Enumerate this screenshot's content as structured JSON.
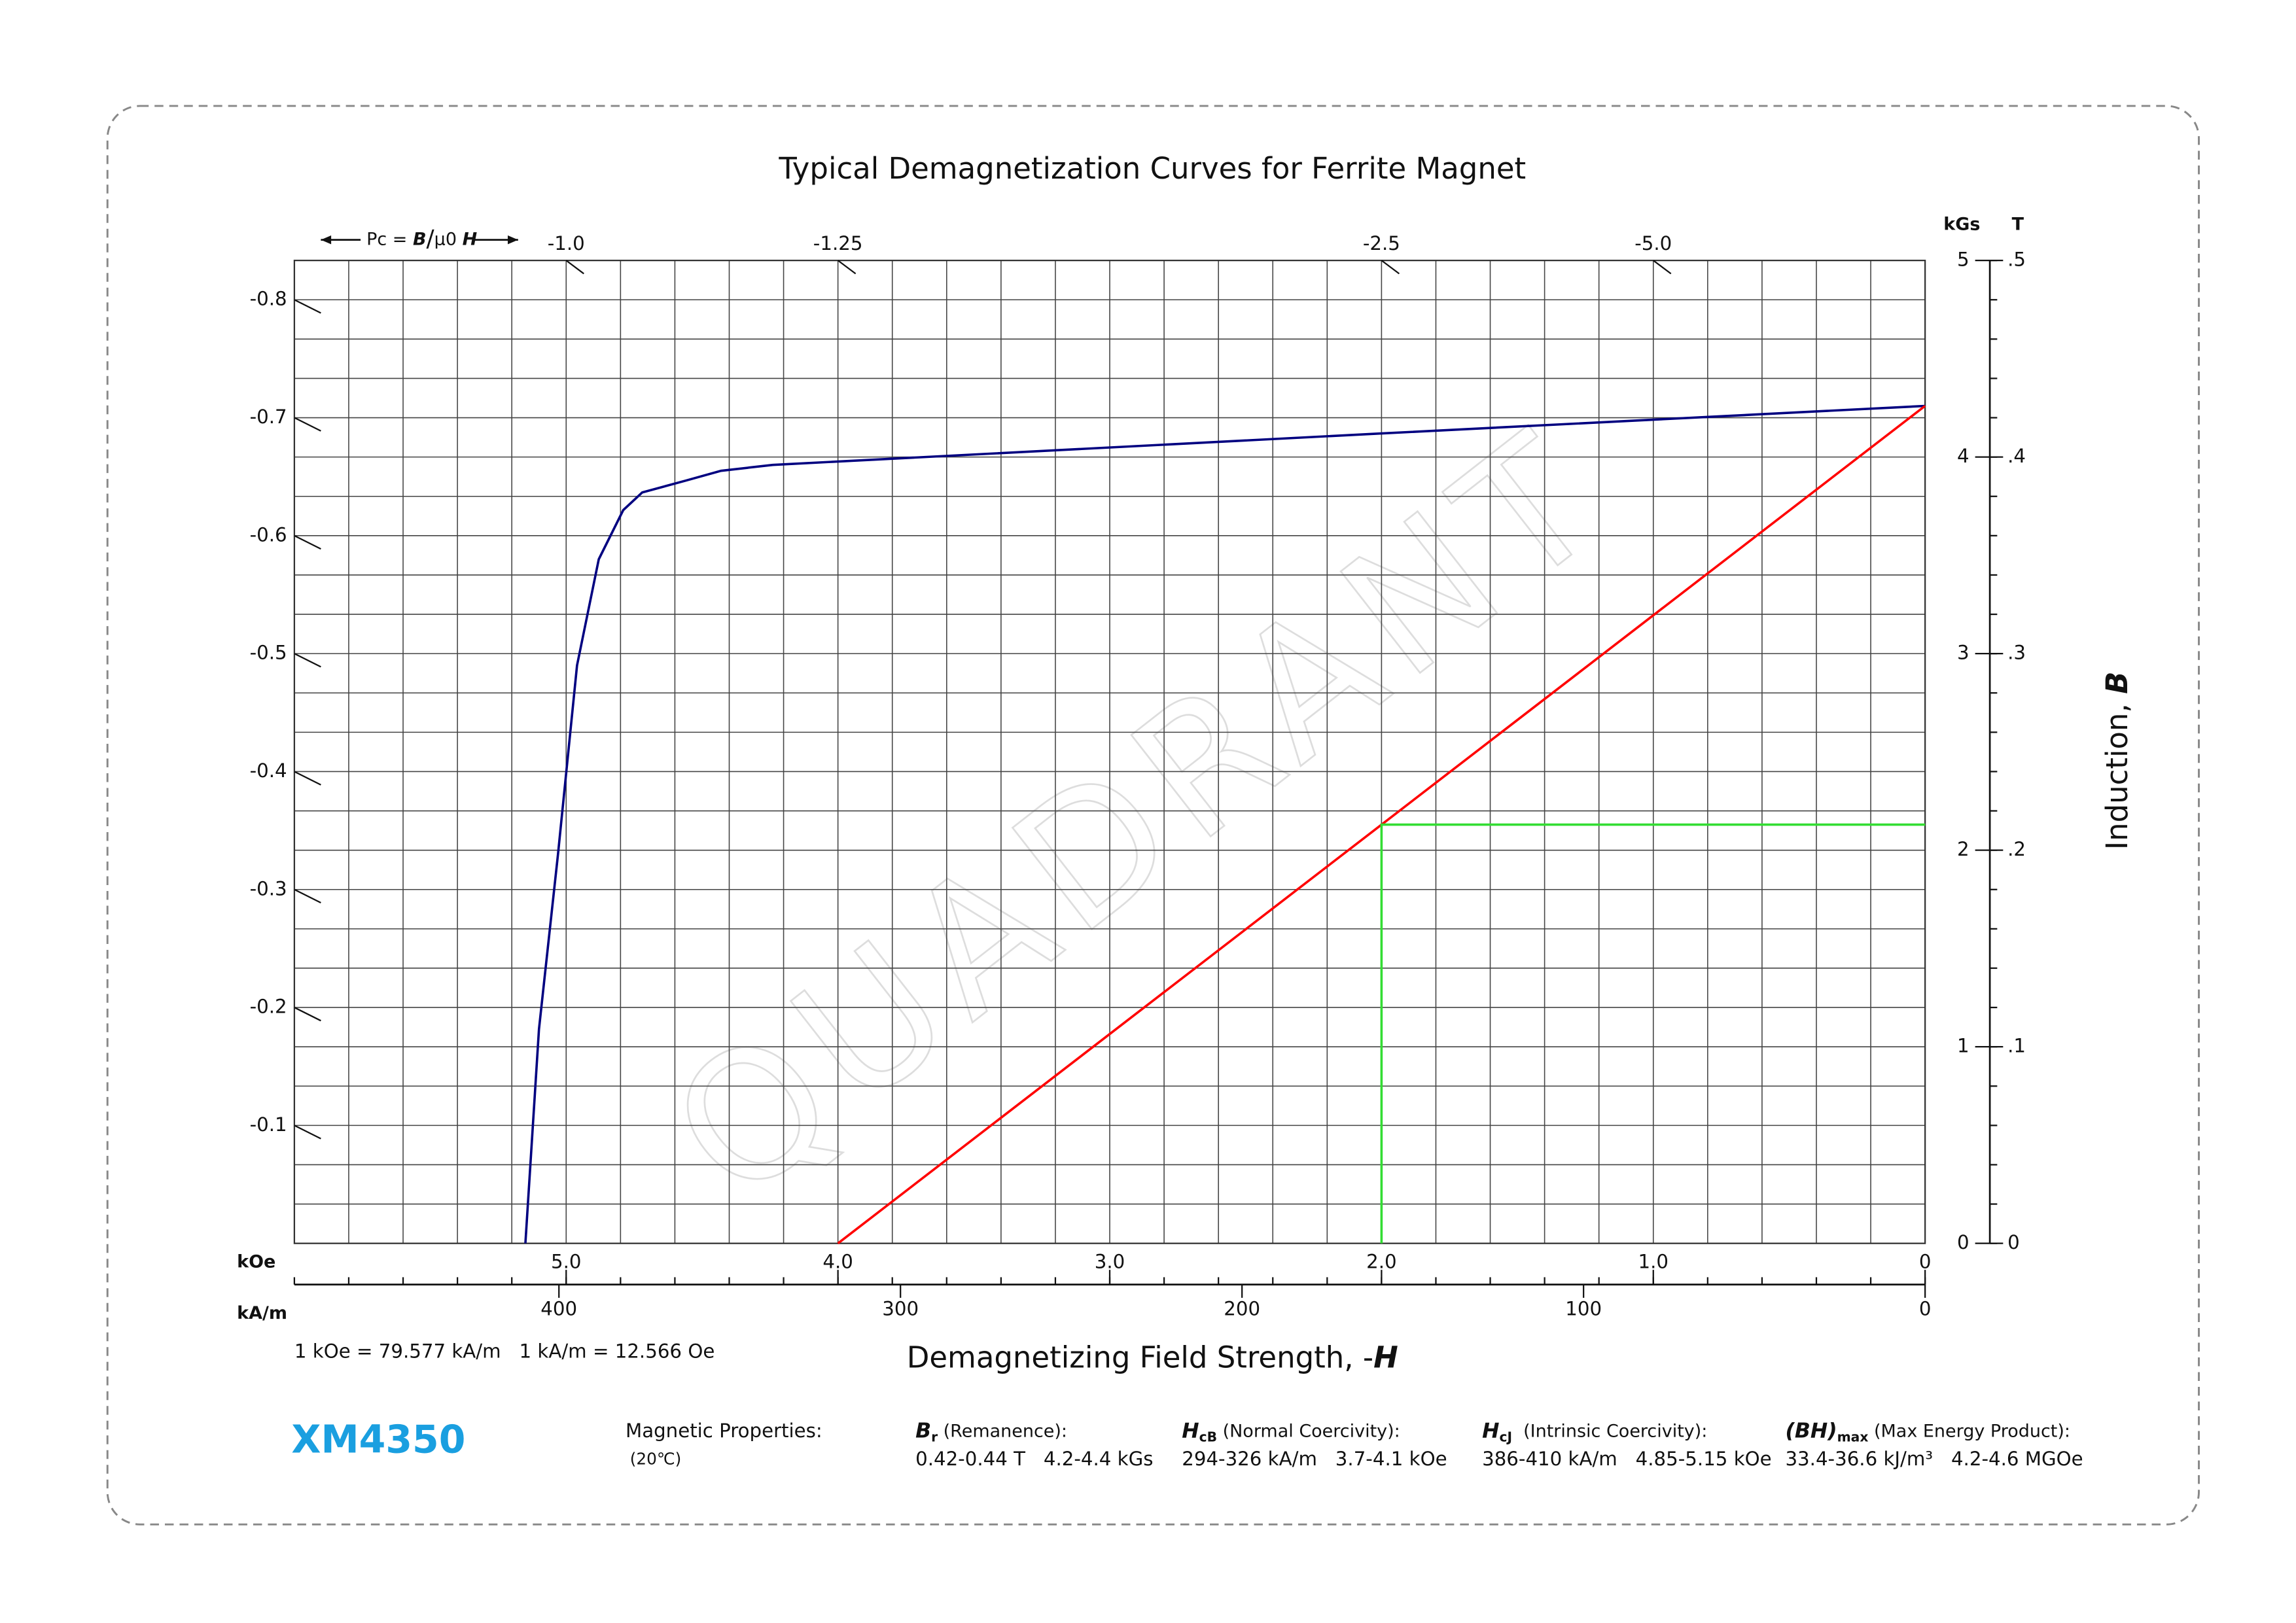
{
  "chart_data": {
    "type": "line",
    "title": "Typical Demagnetization Curves for Ferrite Magnet",
    "xlabel": [
      "Demagnetizing Field Strength, -",
      "H"
    ],
    "ylabel": [
      "Induction, ",
      "B"
    ],
    "xunit": "kOe",
    "x2unit": "kA/m",
    "yunit": "kGs",
    "y2unit": "T",
    "xlim": [
      6,
      0
    ],
    "xticks": [
      {
        "value": 5,
        "label": "5.0"
      },
      {
        "value": 4,
        "label": "4.0"
      },
      {
        "value": 3,
        "label": "3.0"
      },
      {
        "value": 2,
        "label": "2.0"
      },
      {
        "value": 1,
        "label": "1.0"
      },
      0
    ],
    "x2lim": [
      477.46,
      0
    ],
    "x2ticks": [
      400,
      300,
      200,
      100,
      0
    ],
    "ylim": [
      0,
      5
    ],
    "yticks": [
      0,
      1,
      2,
      3,
      4,
      5
    ],
    "y2lim": [
      0,
      0.5
    ],
    "y2ticks": [
      0,
      {
        "value": 0.1,
        "label": ".1"
      },
      {
        "value": 0.2,
        "label": ".2"
      },
      {
        "value": 0.3,
        "label": ".3"
      },
      {
        "value": 0.4,
        "label": ".4"
      },
      {
        "value": 0.5,
        "label": ".5"
      }
    ],
    "grid": true,
    "xgrid": [
      0,
      0.2,
      0.4,
      0.6,
      0.8,
      1,
      1.2,
      1.4,
      1.6,
      1.8,
      2,
      2.2,
      2.4,
      2.6,
      2.8,
      3,
      3.2,
      3.4,
      3.6,
      3.8,
      4,
      4.2,
      4.4,
      4.6,
      4.8,
      5,
      5.2,
      5.4,
      5.6,
      5.8,
      6
    ],
    "ygrid": [
      0,
      0.2,
      0.4,
      0.6,
      0.8,
      1,
      1.2,
      1.4,
      1.6,
      1.8,
      2,
      2.2,
      2.4,
      2.6,
      2.8,
      3,
      3.2,
      3.4,
      3.6,
      3.8,
      4,
      4.2,
      4.4,
      4.6,
      4.8,
      5
    ],
    "pc_label": [
      "Pc = ",
      "B",
      "/",
      "μ0 ",
      "H"
    ],
    "pc_ticks_left": [
      -0.8,
      -0.7,
      -0.6,
      -0.5,
      -0.4,
      -0.3,
      -0.2,
      -0.1
    ],
    "pc_ticks_top": [
      {
        "value": -1,
        "label": "-1.0"
      },
      -1.25,
      -2.5,
      {
        "value": -5,
        "label": "-5.0"
      }
    ],
    "series": [
      {
        "color": "#000080",
        "x": [
          0,
          2.0,
          4.24,
          4.43,
          4.56,
          4.64,
          4.72,
          4.79,
          4.88,
          4.96,
          5.03,
          5.1,
          5.15
        ],
        "values": [
          4.26,
          4.12,
          3.96,
          3.93,
          3.88,
          3.85,
          3.82,
          3.73,
          3.48,
          2.94,
          1.98,
          1.09,
          0
        ]
      },
      {
        "color": "#ff0000",
        "x": [
          0,
          4.0
        ],
        "values": [
          4.26,
          0
        ]
      },
      {
        "color": "#33dd33",
        "x": [
          2.0,
          2.0,
          0
        ],
        "values": [
          0,
          2.13,
          2.13
        ]
      }
    ],
    "note": "1 kOe = 79.577 kA/m   1 kA/m = 12.566 Oe",
    "watermark": "QUADRANT"
  },
  "footer": {
    "product": "XM4350",
    "heading": "Magnetic Properties:",
    "condition": "(20℃)",
    "properties": [
      {
        "symbol": "B",
        "sub": "r",
        "desc": " (Remanence):",
        "value": "0.42-0.44 T   4.2-4.4 kGs"
      },
      {
        "symbol": "H",
        "sub": "cB",
        "desc": " (Normal Coercivity):",
        "value": "294-326 kA/m   3.7-4.1 kOe"
      },
      {
        "symbol": "H",
        "sub": "cJ",
        "desc": "  (Intrinsic Coercivity):",
        "value": "386-410 kA/m   4.85-5.15 kOe"
      },
      {
        "symbol": "(BH)",
        "sub": "max",
        "desc": " (Max Energy Product):",
        "value": "33.4-36.6 kJ/m³   4.2-4.6 MGOe"
      }
    ]
  }
}
